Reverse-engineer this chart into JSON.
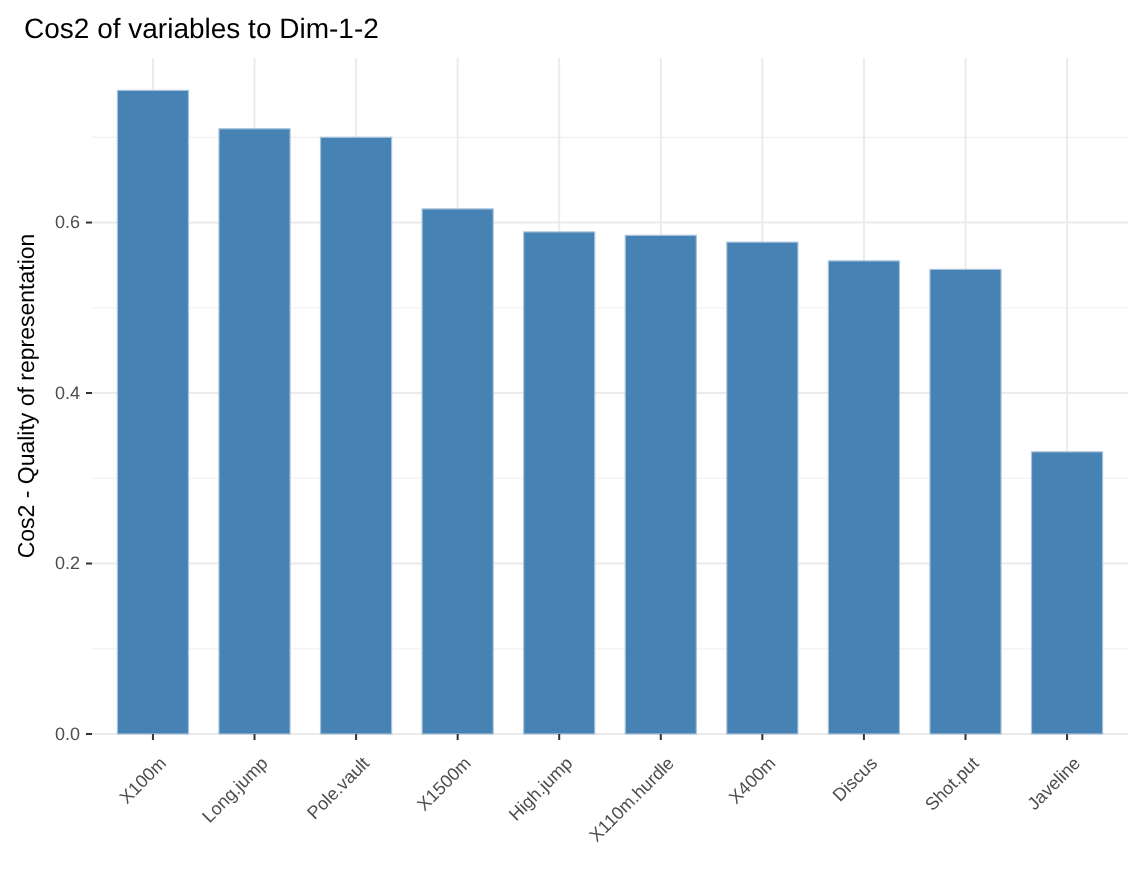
{
  "chart_data": {
    "type": "bar",
    "title": "Cos2 of variables to Dim-1-2",
    "ylabel": "Cos2 - Quality of representation",
    "categories": [
      "X100m",
      "Long.jump",
      "Pole.vault",
      "X1500m",
      "High.jump",
      "X110m.hurdle",
      "X400m",
      "Discus",
      "Shot.put",
      "Javeline"
    ],
    "values": [
      0.755,
      0.71,
      0.7,
      0.616,
      0.589,
      0.585,
      0.577,
      0.555,
      0.545,
      0.331
    ],
    "color": "#4682b4",
    "ylim": [
      0,
      0.793
    ],
    "yticks": [
      {
        "value": 0,
        "label": "0.0"
      },
      {
        "value": 0.2,
        "label": "0.2"
      },
      {
        "value": 0.4,
        "label": "0.4"
      },
      {
        "value": 0.6,
        "label": "0.6"
      }
    ],
    "grid": true
  }
}
